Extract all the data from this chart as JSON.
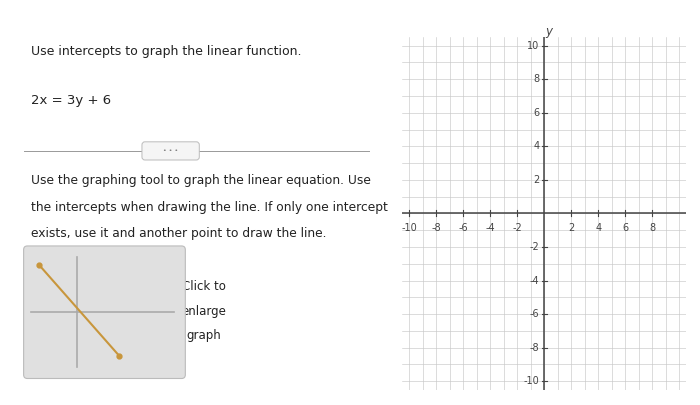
{
  "title_text": "Use intercepts to graph the linear function.",
  "equation": "2x = 3y + 6",
  "instruction_line1": "Use the graphing tool to graph the linear equation. Use",
  "instruction_line2": "the intercepts when drawing the line. If only one intercept",
  "instruction_line3": "exists, use it and another point to draw the line.",
  "button_line1": "Click to",
  "button_line2": "enlarge",
  "button_line3": "graph",
  "xlim": [
    -10.5,
    10.5
  ],
  "ylim": [
    -10.5,
    10.5
  ],
  "xticks": [
    -10,
    -8,
    -6,
    -4,
    -2,
    2,
    4,
    6,
    8
  ],
  "yticks": [
    -10,
    -8,
    -6,
    -4,
    -2,
    2,
    4,
    6,
    8,
    10
  ],
  "xtick_labels": [
    "-10",
    "-8",
    "-6",
    "-4",
    "-2",
    "2",
    "4",
    "6",
    "8"
  ],
  "ytick_labels": [
    "-10",
    "-8",
    "-6",
    "-4",
    "-2",
    "2",
    "4",
    "6",
    "8",
    "10"
  ],
  "axis_label_y": "y",
  "grid_color": "#c8c8c8",
  "axis_color": "#444444",
  "bg_color": "#ffffff",
  "header_color": "#9e2a3a",
  "divider_color": "#999999",
  "text_color": "#222222",
  "thumbnail_line_color": "#c8963c",
  "thumbnail_axes_color": "#aaaaaa",
  "thumbnail_bg": "#e0e0e0",
  "thumbnail_dot_color": "#c8963c",
  "left_yellow_color": "#e8d88a"
}
